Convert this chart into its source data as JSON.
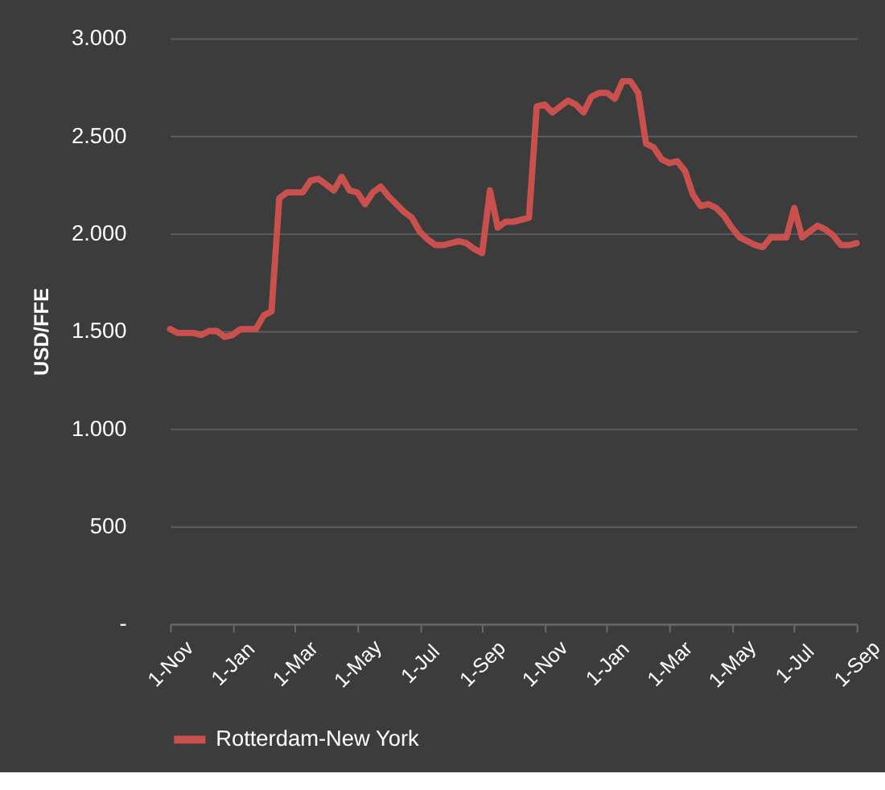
{
  "chart_data": {
    "type": "line",
    "ylabel": "USD/FFE",
    "categories": [
      "1-Nov",
      null,
      null,
      null,
      null,
      null,
      null,
      null,
      "1-Jan",
      null,
      null,
      null,
      null,
      null,
      null,
      null,
      "1-Mar",
      null,
      null,
      null,
      null,
      null,
      null,
      null,
      "1-May",
      null,
      null,
      null,
      null,
      null,
      null,
      null,
      "1-Jul",
      null,
      null,
      null,
      null,
      null,
      null,
      null,
      "1-Sep",
      null,
      null,
      null,
      null,
      null,
      null,
      null,
      "1-Nov",
      null,
      null,
      null,
      null,
      null,
      null,
      null,
      "1-Jan",
      null,
      null,
      null,
      null,
      null,
      null,
      null,
      "1-Mar",
      null,
      null,
      null,
      null,
      null,
      null,
      null,
      "1-May",
      null,
      null,
      null,
      null,
      null,
      null,
      null,
      "1-Jul",
      null,
      null,
      null,
      null,
      null,
      null,
      null,
      "1-Sep"
    ],
    "series": [
      {
        "name": "Rotterdam-New York",
        "color": "#c9504d",
        "values": [
          1510,
          1490,
          1490,
          1490,
          1480,
          1500,
          1500,
          1470,
          1480,
          1510,
          1510,
          1510,
          1580,
          1600,
          2180,
          2210,
          2210,
          2210,
          2270,
          2280,
          2250,
          2220,
          2290,
          2220,
          2210,
          2150,
          2210,
          2240,
          2190,
          2150,
          2110,
          2080,
          2010,
          1970,
          1940,
          1940,
          1950,
          1960,
          1950,
          1920,
          1900,
          2220,
          2030,
          2060,
          2060,
          2070,
          2080,
          2650,
          2660,
          2620,
          2650,
          2680,
          2660,
          2620,
          2700,
          2720,
          2720,
          2690,
          2780,
          2780,
          2720,
          2460,
          2440,
          2380,
          2360,
          2370,
          2320,
          2200,
          2140,
          2150,
          2130,
          2090,
          2030,
          1980,
          1960,
          1940,
          1930,
          1980,
          1980,
          1980,
          2130,
          1980,
          2010,
          2040,
          2020,
          1990,
          1940,
          1940,
          1950
        ]
      }
    ],
    "ylim": [
      0,
      3000
    ],
    "yticks": [
      {
        "value": 0,
        "label": "-"
      },
      {
        "value": 500,
        "label": "500"
      },
      {
        "value": 1000,
        "label": "1.000"
      },
      {
        "value": 1500,
        "label": "1.500"
      },
      {
        "value": 2000,
        "label": "2.000"
      },
      {
        "value": 2500,
        "label": "2.500"
      },
      {
        "value": 3000,
        "label": "3.000"
      }
    ],
    "grid": "y",
    "legend": "bottom",
    "marker": "none",
    "line_style": "solid"
  }
}
